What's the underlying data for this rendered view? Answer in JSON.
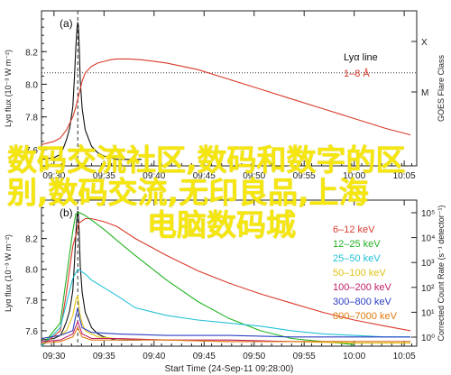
{
  "chart_data": [
    {
      "type": "line",
      "panel_label": "(a)",
      "ylabel": "Lyα flux (10⁻³ W m⁻²)",
      "ylim": [
        7.5,
        8.45
      ],
      "yticks": [
        "7.6",
        "7.8",
        "8.0",
        "8.2"
      ],
      "xlim": [
        0,
        60
      ],
      "xticks": [
        "09:30",
        "09:35",
        "09:40",
        "09:45",
        "09:50",
        "09:55",
        "10:00",
        "10:05"
      ],
      "xlabel": "",
      "right_axis_label": "GOES Flare Class",
      "right_ticks": [
        "X",
        "M"
      ],
      "legend": {
        "position": "top-right",
        "entries": [
          {
            "name": "Lyα line",
            "color": "#111111"
          },
          {
            "name": "1–8 Å",
            "color": "#d93a2b"
          }
        ]
      },
      "series": [
        {
          "name": "Lyα line",
          "color": "#111111",
          "x": [
            0,
            2,
            3,
            3.5,
            4,
            4.5,
            5,
            5.3,
            5.5,
            5.7,
            5.8,
            5.9,
            6.05,
            6.2,
            6.5,
            7,
            8,
            9,
            10,
            11,
            12,
            14,
            16
          ],
          "y": [
            7.54,
            7.55,
            7.57,
            7.61,
            7.66,
            7.73,
            7.86,
            8.06,
            8.23,
            8.35,
            8.38,
            8.36,
            8.22,
            8.02,
            7.85,
            7.72,
            7.62,
            7.58,
            7.56,
            7.55,
            7.54,
            7.54,
            7.54
          ]
        },
        {
          "name": "1–8 Å",
          "color": "#d93a2b",
          "x": [
            0,
            2,
            3,
            4,
            5,
            5.5,
            6,
            6.5,
            7,
            8,
            9,
            10,
            11,
            12,
            14,
            16,
            18,
            20,
            25,
            30,
            35,
            40,
            45,
            50,
            55,
            59
          ],
          "y": [
            7.63,
            7.65,
            7.67,
            7.72,
            7.8,
            7.86,
            7.94,
            8.02,
            8.07,
            8.11,
            8.13,
            8.14,
            8.15,
            8.155,
            8.155,
            8.15,
            8.14,
            8.13,
            8.09,
            8.03,
            7.97,
            7.91,
            7.85,
            7.79,
            7.73,
            7.69
          ]
        }
      ],
      "reference_lines": {
        "horizontal_y": 8.07,
        "vertical_x": 5.8
      }
    },
    {
      "type": "line",
      "panel_label": "(b)",
      "ylabel": "Lyα flux (10⁻³ W m⁻²)",
      "ylim": [
        7.5,
        8.45
      ],
      "yticks": [
        "7.6",
        "7.8",
        "8.0",
        "8.2"
      ],
      "xlim": [
        0,
        60
      ],
      "xticks": [
        "09:30",
        "09:35",
        "09:40",
        "09:45",
        "09:50",
        "09:55",
        "10:00",
        "10:05"
      ],
      "xlabel": "Start Time (24-Sep-11 09:28:00)",
      "right_axis_label": "Corrected Count Rate (s⁻¹ detector⁻¹)",
      "right_ticks": [
        "10⁵",
        "10⁴",
        "10³",
        "10²",
        "10¹",
        "10⁰"
      ],
      "legend": {
        "position": "top-right",
        "entries": [
          {
            "name": "6–12 keV",
            "color": "#d93a2b"
          },
          {
            "name": "12–25 keV",
            "color": "#22b322"
          },
          {
            "name": "25–50 keV",
            "color": "#22c1d6"
          },
          {
            "name": "50–100 keV",
            "color": "#e0c41a"
          },
          {
            "name": "100–200 keV",
            "color": "#c0206a"
          },
          {
            "name": "300–800 keV",
            "color": "#2b3fbf"
          },
          {
            "name": "800–7000 keV",
            "color": "#e07a10"
          }
        ]
      },
      "series": [
        {
          "name": "Lyα line",
          "color": "#111111",
          "x": [
            0,
            2,
            3,
            3.5,
            4,
            4.5,
            5,
            5.3,
            5.5,
            5.7,
            5.8,
            5.9,
            6.05,
            6.2,
            6.5,
            7,
            8,
            9,
            10,
            11,
            12,
            14,
            16
          ],
          "y": [
            7.54,
            7.55,
            7.57,
            7.61,
            7.66,
            7.73,
            7.86,
            8.06,
            8.23,
            8.35,
            8.38,
            8.36,
            8.22,
            8.02,
            7.85,
            7.72,
            7.62,
            7.58,
            7.56,
            7.55,
            7.54,
            7.54,
            7.54
          ]
        },
        {
          "name": "6–12 keV",
          "color": "#d93a2b",
          "x": [
            0,
            3,
            4,
            5,
            6,
            7,
            8,
            10,
            12,
            15,
            20,
            25,
            30,
            35,
            40,
            45,
            50,
            55,
            59
          ],
          "y": [
            7.5,
            7.6,
            7.85,
            8.15,
            8.3,
            8.33,
            8.33,
            8.31,
            8.28,
            8.2,
            8.09,
            7.99,
            7.91,
            7.84,
            7.78,
            7.72,
            7.67,
            7.63,
            7.6
          ]
        },
        {
          "name": "12–25 keV",
          "color": "#22b322",
          "x": [
            0,
            3,
            4,
            5,
            5.5,
            6,
            7,
            8,
            10,
            12,
            15,
            20,
            25,
            30,
            35,
            40,
            45,
            50
          ],
          "y": [
            7.5,
            7.65,
            7.95,
            8.25,
            8.36,
            8.37,
            8.35,
            8.32,
            8.26,
            8.19,
            8.09,
            7.93,
            7.79,
            7.68,
            7.6,
            7.55,
            7.53,
            7.51
          ]
        },
        {
          "name": "25–50 keV",
          "color": "#22c1d6",
          "x": [
            0,
            3,
            4,
            5,
            5.8,
            7,
            8,
            10,
            12,
            15,
            20,
            25,
            30,
            35,
            40,
            45,
            50,
            55,
            59
          ],
          "y": [
            7.5,
            7.62,
            7.78,
            7.94,
            8.0,
            7.97,
            7.93,
            7.88,
            7.83,
            7.75,
            7.7,
            7.67,
            7.65,
            7.63,
            7.6,
            7.58,
            7.57,
            7.56,
            7.56
          ]
        },
        {
          "name": "50–100 keV",
          "color": "#e0c41a",
          "x": [
            0,
            3,
            4,
            5,
            5.5,
            5.8,
            6.1,
            6.5,
            7,
            9,
            12,
            20,
            30,
            40,
            50,
            59
          ],
          "y": [
            7.55,
            7.57,
            7.6,
            7.7,
            7.8,
            7.83,
            7.72,
            7.65,
            7.6,
            7.56,
            7.55,
            7.54,
            7.53,
            7.53,
            7.52,
            7.52
          ]
        },
        {
          "name": "100–200 keV",
          "color": "#c0206a",
          "x": [
            0,
            3,
            5,
            5.8,
            6.5,
            8,
            12,
            20,
            30,
            40,
            50,
            59
          ],
          "y": [
            7.53,
            7.54,
            7.58,
            7.66,
            7.58,
            7.55,
            7.55,
            7.54,
            7.54,
            7.53,
            7.53,
            7.53
          ]
        },
        {
          "name": "300–800 keV",
          "color": "#2b3fbf",
          "x": [
            0,
            3,
            5,
            5.5,
            5.8,
            6.1,
            6.5,
            8,
            12,
            20,
            30,
            40,
            50,
            59
          ],
          "y": [
            7.55,
            7.57,
            7.6,
            7.7,
            7.75,
            7.68,
            7.62,
            7.59,
            7.58,
            7.57,
            7.57,
            7.56,
            7.56,
            7.56
          ]
        },
        {
          "name": "800–7000 keV",
          "color": "#e07a10",
          "x": [
            0,
            3,
            5,
            5.8,
            6.5,
            8,
            12,
            20,
            30,
            40,
            50,
            59
          ],
          "y": [
            7.52,
            7.53,
            7.56,
            7.62,
            7.56,
            7.54,
            7.54,
            7.54,
            7.53,
            7.53,
            7.53,
            7.53
          ]
        }
      ],
      "reference_lines": {
        "vertical_x": 5.8
      }
    }
  ],
  "watermark": {
    "lines": [
      "数码交流社区,数码和数字的区",
      "别,数码交流,无印良品,上海",
      "电脑数码城"
    ],
    "color": "#f5e60f"
  }
}
